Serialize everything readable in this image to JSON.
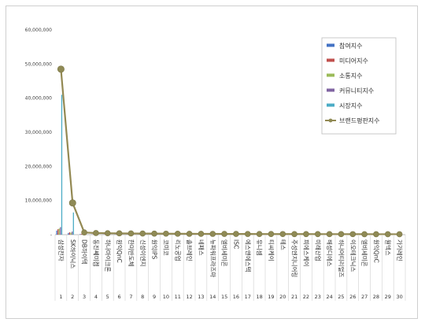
{
  "chart_data": {
    "type": "bar",
    "title": "",
    "xlabel": "",
    "ylabel": "",
    "ylim": [
      0,
      60000000
    ],
    "yticks": [
      "-",
      "10,000,000",
      "20,000,000",
      "30,000,000",
      "40,000,000",
      "50,000,000",
      "60,000,000"
    ],
    "ranks": [
      "1",
      "2",
      "3",
      "4",
      "5",
      "6",
      "7",
      "8",
      "9",
      "10",
      "11",
      "12",
      "13",
      "14",
      "15",
      "16",
      "17",
      "18",
      "19",
      "20",
      "21",
      "22",
      "23",
      "24",
      "25",
      "26",
      "27",
      "28",
      "29",
      "30"
    ],
    "categories": [
      "삼성전자",
      "SK하이닉스",
      "DB하이텍",
      "동진쎄미켐",
      "하나마이크론",
      "원익QnC",
      "한미반도체",
      "신성이엔지",
      "원익IPS",
      "코미코",
      "리노공업",
      "솔브레인",
      "네패스",
      "뉴파워프라즈마",
      "엘비세미콘",
      "ISC",
      "에스앤에스텍",
      "유니셈",
      "티씨케이",
      "테스",
      "주성엔지니어링",
      "피에스케이",
      "미래산업",
      "해성디에스",
      "하나머티리얼즈",
      "이오테크닉스",
      "엘비세미콘",
      "원익QnC",
      "월덱스",
      "가가레인"
    ],
    "series": [
      {
        "name": "참여지수",
        "color": "#4472c4",
        "values": [
          1200000,
          500000,
          150000,
          60000,
          50000,
          45000,
          40000,
          38000,
          35000,
          30000,
          28000,
          25000,
          24000,
          22000,
          20000,
          19000,
          18000,
          17000,
          16000,
          15000,
          14000,
          13000,
          12000,
          11000,
          10000,
          9000,
          8000,
          7000,
          6000,
          5000
        ]
      },
      {
        "name": "미디어지수",
        "color": "#c0504d",
        "values": [
          1600000,
          700000,
          200000,
          90000,
          80000,
          70000,
          65000,
          60000,
          55000,
          50000,
          45000,
          40000,
          38000,
          36000,
          34000,
          32000,
          30000,
          28000,
          26000,
          24000,
          22000,
          20000,
          18000,
          16000,
          14000,
          12000,
          10000,
          9000,
          8000,
          7000
        ]
      },
      {
        "name": "소통지수",
        "color": "#9bbb59",
        "values": [
          1800000,
          600000,
          180000,
          70000,
          60000,
          55000,
          50000,
          48000,
          45000,
          40000,
          38000,
          35000,
          32000,
          30000,
          28000,
          26000,
          24000,
          22000,
          20000,
          18000,
          16000,
          14000,
          12000,
          10000,
          9000,
          8000,
          7000,
          6000,
          5000,
          4000
        ]
      },
      {
        "name": "커뮤니티지수",
        "color": "#8064a2",
        "values": [
          2200000,
          900000,
          250000,
          100000,
          90000,
          80000,
          75000,
          70000,
          65000,
          60000,
          55000,
          50000,
          45000,
          40000,
          38000,
          36000,
          34000,
          32000,
          30000,
          28000,
          26000,
          24000,
          22000,
          20000,
          18000,
          16000,
          14000,
          12000,
          10000,
          8000
        ]
      },
      {
        "name": "시장지수",
        "color": "#4bacc6",
        "values": [
          41000000,
          6500000,
          200000,
          150000,
          140000,
          130000,
          120000,
          110000,
          100000,
          95000,
          90000,
          85000,
          80000,
          75000,
          70000,
          65000,
          60000,
          55000,
          50000,
          45000,
          40000,
          35000,
          30000,
          28000,
          26000,
          24000,
          22000,
          20000,
          18000,
          16000
        ]
      },
      {
        "name": "브랜드평판지수",
        "color": "#938953",
        "marker": "#8f8a55",
        "values": [
          48500000,
          9300000,
          650000,
          470000,
          420000,
          380000,
          350000,
          330000,
          310000,
          290000,
          270000,
          255000,
          240000,
          230000,
          220000,
          210000,
          200000,
          190000,
          180000,
          175000,
          170000,
          165000,
          160000,
          155000,
          150000,
          145000,
          140000,
          135000,
          130000,
          125000
        ]
      }
    ],
    "legend_position": "right",
    "grid": false
  }
}
